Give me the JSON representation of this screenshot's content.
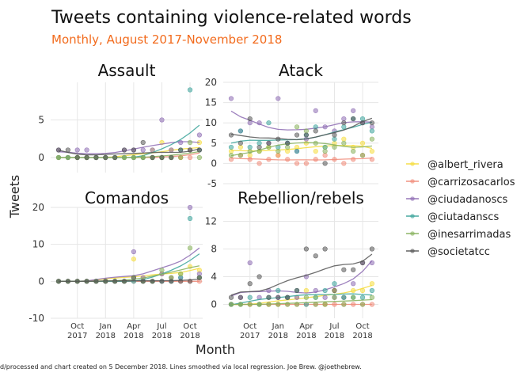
{
  "title": "Tweets containing violence-related words",
  "subtitle": "Monthly, August 2017-November 2018",
  "caption": "d/processed and chart created on 5 December 2018. Lines smoothed via local regression. Joe Brew. @joethebrew.",
  "colors": {
    "title": "#111111",
    "subtitle": "#F26B1D",
    "gridline": "#E6E6E6"
  },
  "chart_data": {
    "type": "line",
    "xlabel": "Month",
    "ylabel": "Tweets",
    "grid": true,
    "legend_position": "right",
    "x": [
      "2017-08",
      "2017-09",
      "2017-10",
      "2017-11",
      "2017-12",
      "2018-01",
      "2018-02",
      "2018-03",
      "2018-04",
      "2018-05",
      "2018-06",
      "2018-07",
      "2018-08",
      "2018-09",
      "2018-10",
      "2018-11"
    ],
    "x_ticks": [
      {
        "month": "2017-10",
        "label": "Oct\n2017"
      },
      {
        "month": "2018-01",
        "label": "Jan\n2018"
      },
      {
        "month": "2018-04",
        "label": "Apr\n2018"
      },
      {
        "month": "2018-07",
        "label": "Jul\n2018"
      },
      {
        "month": "2018-10",
        "label": "Oct\n2018"
      }
    ],
    "series_names": [
      "@albert_rivera",
      "@carrizosacarlos",
      "@ciudadanoscs",
      "@ciutadanscs",
      "@inesarrimadas",
      "@societatcc"
    ],
    "series_colors": [
      "#F5DC3A",
      "#F08A78",
      "#8D6BB3",
      "#3AA39A",
      "#86B05A",
      "#555555"
    ],
    "panels": [
      {
        "title": "Assault",
        "ylim": [
          -2,
          10
        ],
        "y_ticks": [
          0,
          5
        ],
        "series": [
          {
            "name": "@albert_rivera",
            "values": [
              0,
              0,
              0,
              0,
              0,
              0,
              0,
              0,
              0,
              0,
              1,
              2,
              1,
              0,
              1,
              2
            ]
          },
          {
            "name": "@carrizosacarlos",
            "values": [
              0,
              0,
              0,
              0,
              0,
              0,
              0,
              0,
              0,
              0,
              0,
              0,
              0,
              0,
              0,
              1
            ]
          },
          {
            "name": "@ciudadanoscs",
            "values": [
              1,
              0,
              1,
              1,
              0,
              0,
              0,
              1,
              1,
              1,
              1,
              5,
              1,
              2,
              1,
              3
            ]
          },
          {
            "name": "@ciutadanscs",
            "values": [
              0,
              0,
              0,
              0,
              0,
              0,
              0,
              0,
              0,
              0,
              0,
              0,
              0,
              1,
              9,
              1
            ]
          },
          {
            "name": "@inesarrimadas",
            "values": [
              0,
              0,
              0,
              0,
              0,
              0,
              0,
              0,
              0,
              0,
              0,
              0,
              0,
              0,
              2,
              0
            ]
          },
          {
            "name": "@societatcc",
            "values": [
              1,
              1,
              0,
              0,
              0,
              0,
              0,
              1,
              1,
              2,
              0,
              0,
              0,
              1,
              1,
              1
            ]
          }
        ]
      },
      {
        "title": "Atack",
        "ylim": [
          -5,
          20
        ],
        "y_ticks": [
          -5,
          0,
          5,
          10,
          15,
          20
        ],
        "series": [
          {
            "name": "@albert_rivera",
            "values": [
              3,
              4,
              2,
              3,
              4,
              2,
              3,
              4,
              5,
              3,
              4,
              5,
              6,
              4,
              5,
              3
            ]
          },
          {
            "name": "@carrizosacarlos",
            "values": [
              1,
              2,
              1,
              0,
              1,
              2,
              1,
              0,
              0,
              1,
              2,
              1,
              0,
              1,
              2,
              1
            ]
          },
          {
            "name": "@ciudadanoscs",
            "values": [
              16,
              8,
              10,
              10,
              5,
              16,
              5,
              3,
              6,
              13,
              9,
              8,
              11,
              13,
              10,
              9
            ]
          },
          {
            "name": "@ciutadanscs",
            "values": [
              4,
              8,
              4,
              5,
              10,
              4,
              5,
              3,
              7,
              9,
              4,
              6,
              9,
              11,
              11,
              8
            ]
          },
          {
            "name": "@inesarrimadas",
            "values": [
              2,
              2,
              3,
              3,
              4,
              3,
              4,
              9,
              8,
              5,
              3,
              4,
              5,
              3,
              2,
              6
            ]
          },
          {
            "name": "@societatcc",
            "values": [
              7,
              5,
              11,
              4,
              5,
              6,
              5,
              7,
              7,
              8,
              0,
              7,
              10,
              11,
              10,
              10
            ]
          }
        ]
      },
      {
        "title": "Comandos",
        "ylim": [
          -10,
          20
        ],
        "y_ticks": [
          -10,
          0,
          10,
          20
        ],
        "series": [
          {
            "name": "@albert_rivera",
            "values": [
              0,
              0,
              0,
              0,
              0,
              0,
              0,
              0,
              6,
              1,
              0,
              2,
              1,
              2,
              4,
              3
            ]
          },
          {
            "name": "@carrizosacarlos",
            "values": [
              0,
              0,
              0,
              0,
              0,
              0,
              0,
              0,
              0,
              0,
              0,
              0,
              0,
              0,
              0,
              0
            ]
          },
          {
            "name": "@ciudadanoscs",
            "values": [
              0,
              0,
              0,
              0,
              0,
              0,
              0,
              0,
              8,
              1,
              0,
              2,
              1,
              1,
              20,
              2
            ]
          },
          {
            "name": "@ciutadanscs",
            "values": [
              0,
              0,
              0,
              0,
              0,
              0,
              0,
              0,
              0,
              0,
              0,
              0,
              0,
              1,
              17,
              1
            ]
          },
          {
            "name": "@inesarrimadas",
            "values": [
              0,
              0,
              0,
              0,
              0,
              0,
              0,
              0,
              1,
              0,
              0,
              3,
              1,
              2,
              9,
              1
            ]
          },
          {
            "name": "@societatcc",
            "values": [
              0,
              0,
              0,
              0,
              0,
              0,
              0,
              0,
              1,
              0,
              0,
              0,
              0,
              0,
              0,
              1
            ]
          }
        ]
      },
      {
        "title": "Rebellion/rebels",
        "ylim": [
          -2,
          14
        ],
        "y_ticks": [
          0,
          4,
          8,
          12
        ],
        "series": [
          {
            "name": "@albert_rivera",
            "values": [
              0,
              0,
              0,
              0,
              0,
              0,
              1,
              1,
              2,
              1,
              0,
              2,
              1,
              2,
              2,
              3
            ]
          },
          {
            "name": "@carrizosacarlos",
            "values": [
              0,
              0,
              0,
              0,
              0,
              0,
              0,
              0,
              0,
              0,
              0,
              0,
              0,
              0,
              0,
              0
            ]
          },
          {
            "name": "@ciudadanoscs",
            "values": [
              0,
              1,
              6,
              1,
              2,
              1,
              1,
              1,
              4,
              2,
              1,
              1,
              1,
              3,
              6,
              6
            ]
          },
          {
            "name": "@ciutadanscs",
            "values": [
              0,
              0,
              1,
              0,
              1,
              2,
              1,
              2,
              0,
              1,
              2,
              3,
              1,
              1,
              1,
              2
            ]
          },
          {
            "name": "@inesarrimadas",
            "values": [
              0,
              0,
              0,
              0,
              0,
              0,
              0,
              0,
              1,
              0,
              0,
              1,
              0,
              1,
              0,
              1
            ]
          },
          {
            "name": "@societatcc",
            "values": [
              1,
              1,
              3,
              4,
              1,
              1,
              1,
              2,
              8,
              7,
              8,
              2,
              5,
              5,
              6,
              8
            ]
          }
        ]
      }
    ]
  }
}
